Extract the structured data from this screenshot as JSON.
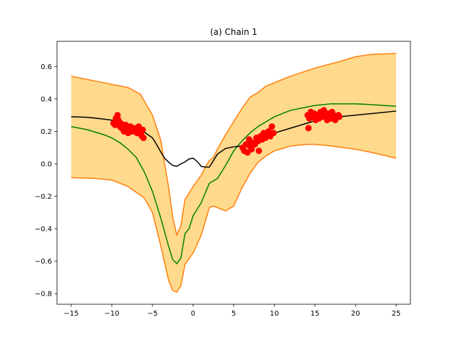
{
  "chart_data": {
    "type": "line",
    "title": "(a) Chain 1",
    "xlabel": "",
    "ylabel": "",
    "xlim": [
      -16.75,
      26.75
    ],
    "ylim": [
      -0.865,
      0.755
    ],
    "xticks": [
      -15,
      -10,
      -5,
      0,
      5,
      10,
      15,
      20,
      25
    ],
    "yticks": [
      -0.8,
      -0.6,
      -0.4,
      -0.2,
      0.0,
      0.2,
      0.4,
      0.6
    ],
    "ytick_labels": [
      "−0.8",
      "−0.6",
      "−0.4",
      "−0.2",
      "0.0",
      "0.2",
      "0.4",
      "0.6"
    ],
    "xtick_labels": [
      "−15",
      "−10",
      "−5",
      "0",
      "5",
      "10",
      "15",
      "20",
      "25"
    ],
    "grid": false,
    "colors": {
      "band_fill": "#ffd886",
      "band_edge": "#ff7f0e",
      "mean": "#008000",
      "truth": "#000000",
      "points": "#ff0000"
    },
    "band_upper": {
      "x": [
        -15,
        -12,
        -10,
        -8,
        -6.5,
        -5,
        -4,
        -3,
        -2.5,
        -2,
        -1.5,
        -1,
        0,
        1,
        1.5,
        2,
        2.5,
        3,
        4,
        5,
        6,
        7,
        8,
        9,
        10,
        12,
        15,
        18,
        20,
        22,
        25
      ],
      "y": [
        0.54,
        0.51,
        0.49,
        0.47,
        0.43,
        0.3,
        0.15,
        -0.15,
        -0.33,
        -0.44,
        -0.38,
        -0.22,
        -0.14,
        -0.07,
        -0.02,
        0.02,
        0.04,
        0.09,
        0.18,
        0.26,
        0.34,
        0.41,
        0.44,
        0.48,
        0.5,
        0.54,
        0.59,
        0.63,
        0.66,
        0.675,
        0.68
      ]
    },
    "band_lower": {
      "x": [
        -15,
        -12,
        -10,
        -8,
        -6,
        -5,
        -4,
        -3,
        -2.5,
        -2,
        -1.5,
        -1,
        0,
        1,
        2,
        2.5,
        3,
        4,
        5,
        6,
        7,
        8,
        9,
        10,
        12,
        14,
        15,
        17,
        20,
        22,
        25
      ],
      "y": [
        -0.085,
        -0.09,
        -0.1,
        -0.14,
        -0.21,
        -0.3,
        -0.5,
        -0.72,
        -0.78,
        -0.79,
        -0.75,
        -0.62,
        -0.55,
        -0.44,
        -0.27,
        -0.26,
        -0.27,
        -0.29,
        -0.26,
        -0.15,
        -0.06,
        0.01,
        0.05,
        0.08,
        0.11,
        0.12,
        0.12,
        0.11,
        0.09,
        0.07,
        0.035
      ]
    },
    "series": [
      {
        "x": [
          -15,
          -13,
          -11,
          -10,
          -9,
          -8,
          -7,
          -6,
          -5,
          -4,
          -3,
          -2.5,
          -2,
          -1.5,
          -1,
          -0.5,
          0,
          1,
          2,
          3,
          4,
          5,
          6,
          7,
          8,
          10,
          12,
          15,
          17,
          20,
          22,
          25
        ],
        "y": [
          0.23,
          0.21,
          0.18,
          0.16,
          0.13,
          0.09,
          0.04,
          -0.05,
          -0.17,
          -0.33,
          -0.51,
          -0.59,
          -0.615,
          -0.58,
          -0.43,
          -0.4,
          -0.32,
          -0.24,
          -0.12,
          -0.09,
          -0.01,
          0.08,
          0.14,
          0.19,
          0.23,
          0.29,
          0.33,
          0.36,
          0.37,
          0.37,
          0.365,
          0.355
        ]
      },
      {
        "x": [
          -15,
          -13,
          -11,
          -9,
          -7,
          -5,
          -4.5,
          -4,
          -3.5,
          -3,
          -2.5,
          -2,
          -1.5,
          -1,
          -0.5,
          0,
          0.5,
          1,
          1.5,
          2,
          2.5,
          3,
          4,
          5,
          6,
          7,
          8,
          9,
          10,
          12,
          14,
          16,
          18,
          20,
          22,
          25
        ],
        "y": [
          0.29,
          0.287,
          0.276,
          0.262,
          0.23,
          0.16,
          0.12,
          0.075,
          0.035,
          0.01,
          -0.01,
          -0.015,
          0.0,
          0.012,
          0.03,
          0.035,
          0.015,
          -0.015,
          -0.02,
          -0.02,
          0.02,
          0.06,
          0.095,
          0.105,
          0.11,
          0.13,
          0.16,
          0.18,
          0.19,
          0.22,
          0.25,
          0.28,
          0.29,
          0.3,
          0.31,
          0.325
        ]
      }
    ],
    "points": {
      "x": [
        -9.8,
        -9.6,
        -9.5,
        -9.4,
        -9.3,
        -9.2,
        -9.1,
        -9.0,
        -8.9,
        -8.8,
        -8.7,
        -8.6,
        -8.5,
        -8.3,
        -8.1,
        -8.0,
        -7.9,
        -7.7,
        -7.5,
        -7.3,
        -7.1,
        -6.9,
        -6.7,
        -6.5,
        -6.4,
        -6.3,
        -6.2,
        -6.1,
        6.1,
        6.3,
        6.5,
        6.7,
        6.9,
        7.0,
        7.2,
        7.4,
        7.6,
        7.8,
        8.0,
        8.1,
        8.3,
        8.5,
        8.7,
        8.9,
        9.1,
        9.3,
        9.5,
        9.7,
        9.9,
        14.1,
        14.3,
        14.5,
        14.7,
        14.9,
        15.1,
        15.3,
        15.5,
        15.7,
        15.9,
        16.1,
        16.3,
        16.5,
        16.7,
        16.9,
        17.1,
        17.3,
        17.5,
        17.7,
        17.9,
        18.0,
        14.2,
        15.0,
        16.0,
        17.0
      ],
      "y": [
        0.25,
        0.24,
        0.28,
        0.26,
        0.3,
        0.27,
        0.24,
        0.23,
        0.25,
        0.22,
        0.24,
        0.23,
        0.2,
        0.24,
        0.22,
        0.19,
        0.21,
        0.23,
        0.2,
        0.22,
        0.2,
        0.19,
        0.23,
        0.2,
        0.18,
        0.17,
        0.21,
        0.16,
        0.1,
        0.08,
        0.12,
        0.07,
        0.15,
        0.11,
        0.09,
        0.13,
        0.12,
        0.16,
        0.14,
        0.08,
        0.17,
        0.15,
        0.19,
        0.16,
        0.18,
        0.2,
        0.17,
        0.23,
        0.19,
        0.3,
        0.28,
        0.32,
        0.29,
        0.31,
        0.27,
        0.3,
        0.28,
        0.32,
        0.29,
        0.33,
        0.3,
        0.27,
        0.31,
        0.28,
        0.32,
        0.3,
        0.27,
        0.29,
        0.3,
        0.29,
        0.22,
        0.29,
        0.31,
        0.28
      ]
    }
  }
}
